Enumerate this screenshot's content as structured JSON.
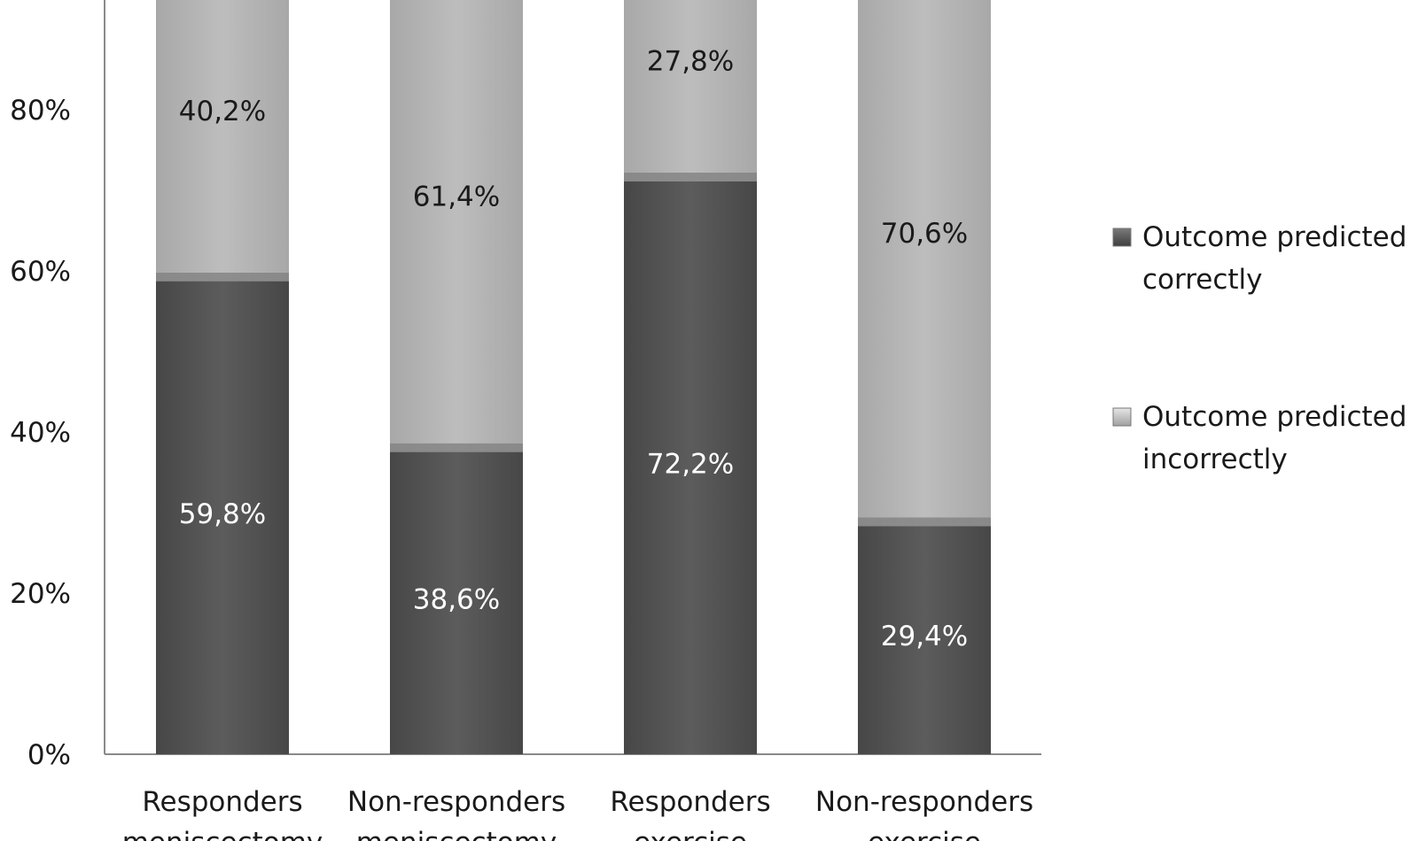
{
  "chart_data": {
    "type": "bar",
    "stacked": true,
    "percent": true,
    "title": "",
    "xlabel": "",
    "ylabel": "",
    "ylim": [
      0,
      100
    ],
    "yticks": [
      "0%",
      "20%",
      "40%",
      "60%",
      "80%"
    ],
    "categories": [
      [
        "Responders",
        "meniscectomy"
      ],
      [
        "Non-responders",
        "meniscectomy"
      ],
      [
        "Responders",
        "exercise"
      ],
      [
        "Non-responders",
        "exercise"
      ]
    ],
    "series": [
      {
        "name": "Outcome predicted correctly",
        "values": [
          59.8,
          38.6,
          72.2,
          29.4
        ],
        "labels": [
          "59,8%",
          "38,6%",
          "72,2%",
          "29,4%"
        ],
        "color": "#555555"
      },
      {
        "name": "Outcome predicted incorrectly",
        "values": [
          40.2,
          61.4,
          27.8,
          70.6
        ],
        "labels": [
          "40,2%",
          "61,4%",
          "27,8%",
          "70,6%"
        ],
        "color": "#b4b4b4"
      }
    ],
    "legend": {
      "position": "right",
      "entries": [
        [
          "Outcome predicted",
          "correctly"
        ],
        [
          "Outcome predicted",
          "incorrectly"
        ]
      ]
    },
    "grid": false
  }
}
